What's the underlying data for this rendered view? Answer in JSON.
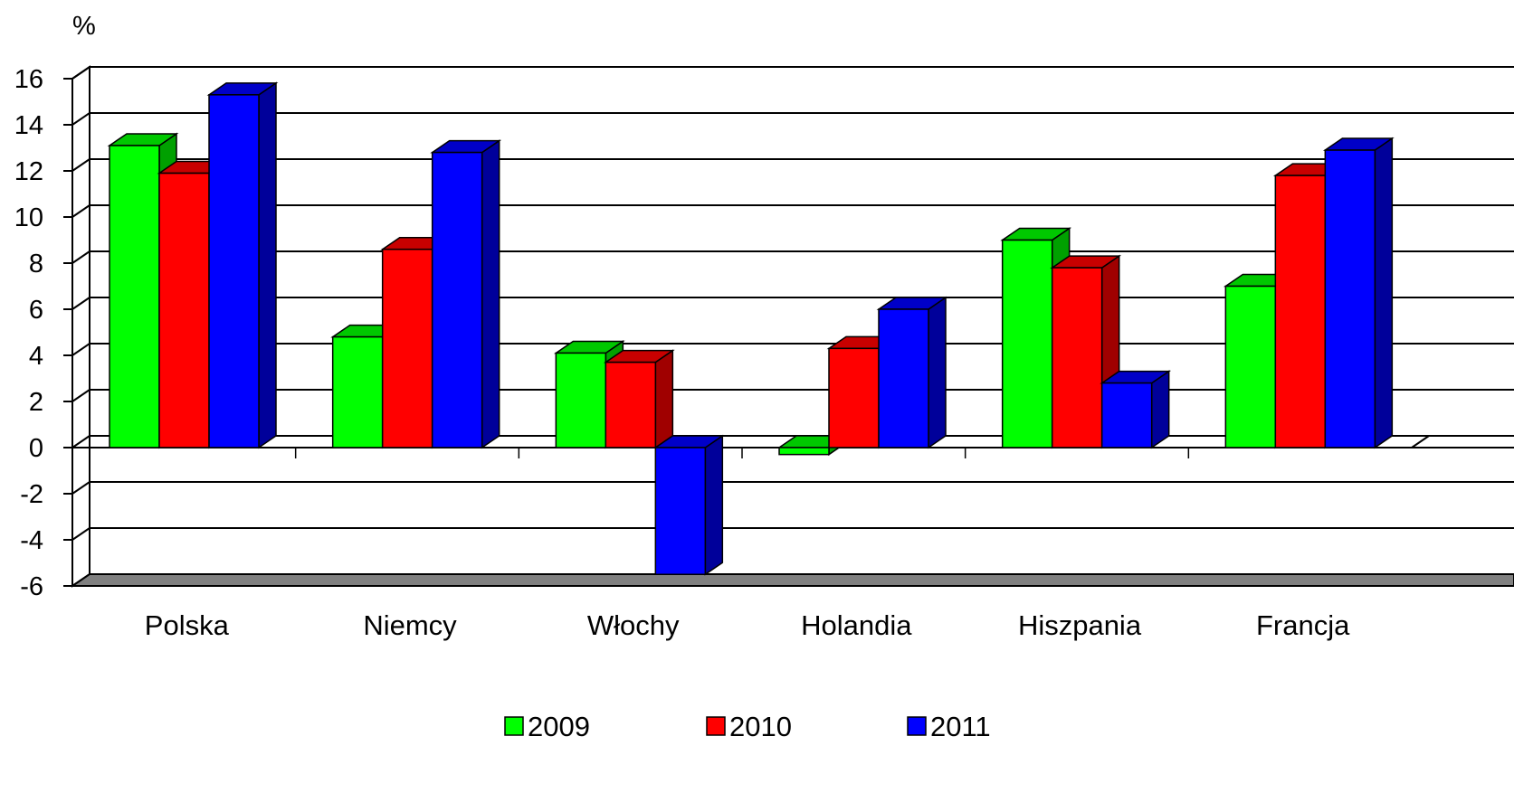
{
  "chart_data": {
    "type": "bar",
    "unit_label": "%",
    "categories": [
      "Polska",
      "Niemcy",
      "Włochy",
      "Holandia",
      "Hiszpania",
      "Francja"
    ],
    "series": [
      {
        "name": "2009",
        "color": "#00ff00",
        "side_color": "#00a000",
        "values": [
          13.1,
          4.8,
          4.1,
          -0.3,
          9.0,
          7.0
        ]
      },
      {
        "name": "2010",
        "color": "#ff0000",
        "side_color": "#a00000",
        "values": [
          11.9,
          8.6,
          3.7,
          4.3,
          7.8,
          11.8
        ]
      },
      {
        "name": "2011",
        "color": "#0000ff",
        "side_color": "#00009a",
        "values": [
          15.3,
          12.8,
          -5.5,
          6.0,
          2.8,
          12.9
        ]
      }
    ],
    "yticks": [
      "16",
      "14",
      "12",
      "10",
      "8",
      "6",
      "4",
      "2",
      "0",
      "-2",
      "-4",
      "-6"
    ],
    "ylim": [
      -6,
      16
    ],
    "grid": true,
    "legend_position": "bottom"
  }
}
